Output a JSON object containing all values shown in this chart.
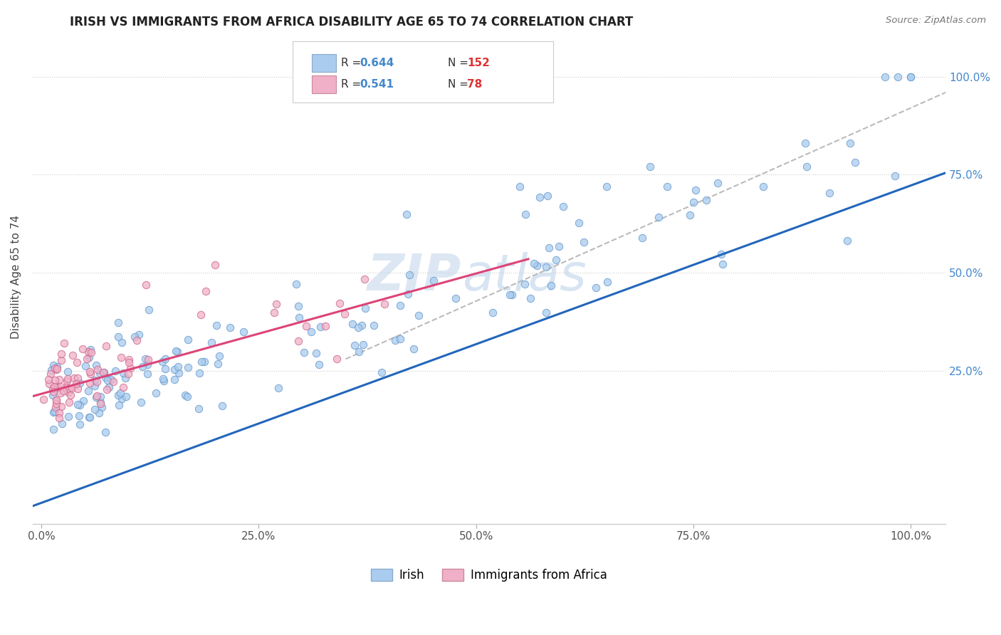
{
  "title": "IRISH VS IMMIGRANTS FROM AFRICA DISABILITY AGE 65 TO 74 CORRELATION CHART",
  "source": "Source: ZipAtlas.com",
  "ylabel": "Disability Age 65 to 74",
  "legend_label_1": "Irish",
  "legend_label_2": "Immigrants from Africa",
  "R1": 0.644,
  "N1": 152,
  "R2": 0.541,
  "N2": 78,
  "color_irish": "#aaccee",
  "color_africa": "#f0b0c8",
  "color_trendline_irish": "#2266bb",
  "color_trendline_africa": "#dd4477",
  "color_trendline_gray": "#bbbbbb",
  "watermark_zip": "ZIP",
  "watermark_atlas": "atlas",
  "xtick_labels": [
    "0.0%",
    "25.0%",
    "50.0%",
    "75.0%",
    "100.0%"
  ],
  "xtick_vals": [
    0.0,
    0.25,
    0.5,
    0.75,
    1.0
  ],
  "ytick_labels": [
    "25.0%",
    "50.0%",
    "75.0%",
    "100.0%"
  ],
  "ytick_vals": [
    0.25,
    0.5,
    0.75,
    1.0
  ],
  "xlim": [
    -0.01,
    1.04
  ],
  "ylim": [
    -0.14,
    1.12
  ],
  "irish_trendline_x0": -0.01,
  "irish_trendline_x1": 1.04,
  "irish_trendline_y0": -0.095,
  "irish_trendline_y1": 0.755,
  "africa_trendline_x0": -0.01,
  "africa_trendline_x1": 0.56,
  "africa_trendline_y0": 0.185,
  "africa_trendline_y1": 0.535,
  "gray_trendline_x0": 0.35,
  "gray_trendline_x1": 1.04,
  "gray_trendline_y0": 0.28,
  "gray_trendline_y1": 0.96
}
